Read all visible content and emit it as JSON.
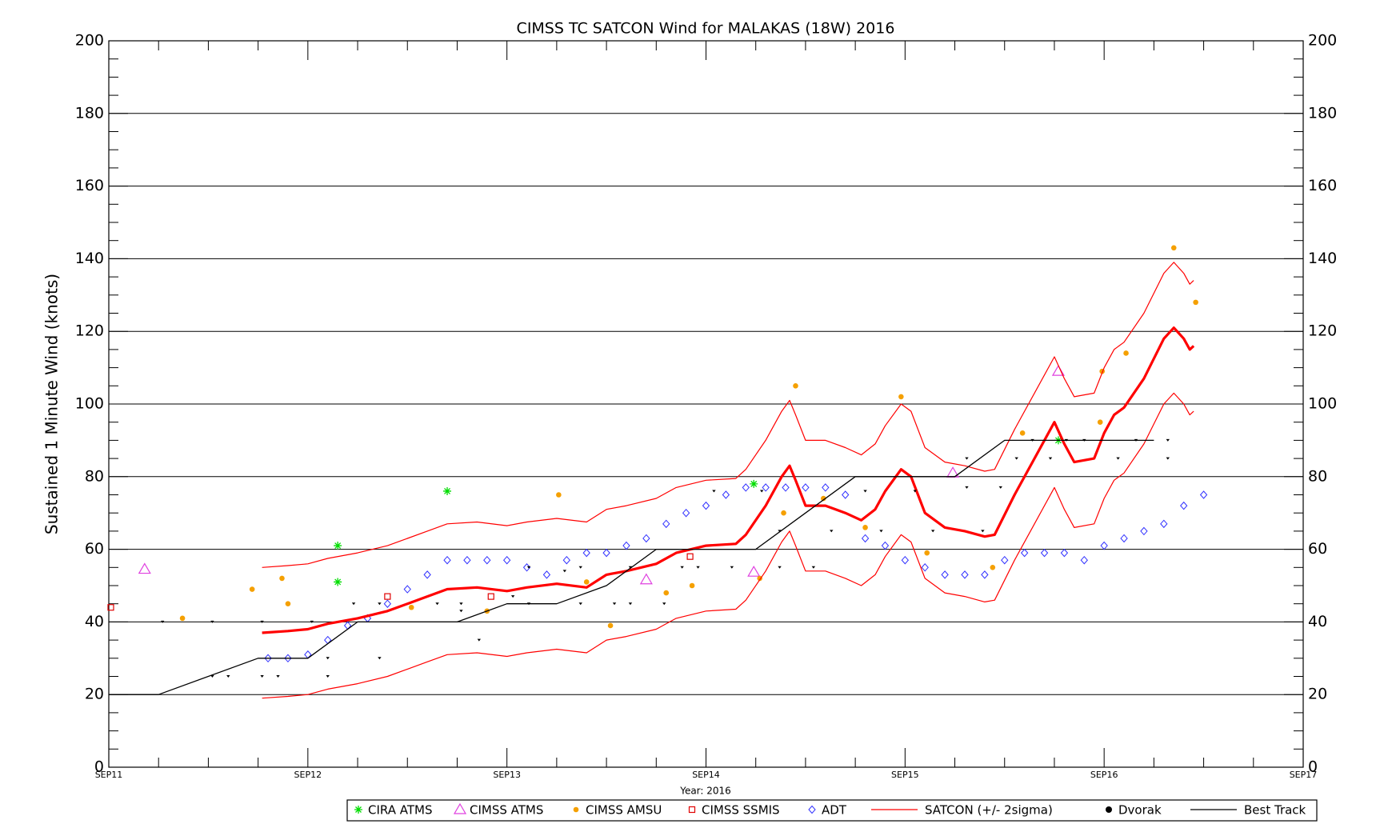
{
  "chart_data": {
    "type": "scatter",
    "title": "CIMSS TC SATCON Wind for MALAKAS (18W) 2016",
    "xlabel": "Year: 2016",
    "ylabel": "Sustained 1 Minute Wind (knots)",
    "xlim": [
      0,
      6
    ],
    "ylim": [
      0,
      200
    ],
    "xticks": [
      {
        "value": 0,
        "label": "SEP11"
      },
      {
        "value": 1,
        "label": "SEP12"
      },
      {
        "value": 2,
        "label": "SEP13"
      },
      {
        "value": 3,
        "label": "SEP14"
      },
      {
        "value": 4,
        "label": "SEP15"
      },
      {
        "value": 5,
        "label": "SEP16"
      },
      {
        "value": 6,
        "label": "SEP17"
      }
    ],
    "yticks": [
      0,
      20,
      40,
      60,
      80,
      100,
      120,
      140,
      160,
      180,
      200
    ],
    "grid": true,
    "series": [
      {
        "name": "CIRA ATMS",
        "color": "#00dd00",
        "marker": "asterisk",
        "x": [
          1.15,
          1.15,
          1.7,
          3.24,
          4.77
        ],
        "values": [
          61,
          51,
          76,
          78,
          90
        ]
      },
      {
        "name": "CIMSS ATMS",
        "color": "#e040e0",
        "marker": "triangle",
        "x": [
          0.18,
          2.7,
          3.24,
          4.24,
          4.77
        ],
        "values": [
          54.5,
          51.6,
          53.7,
          81,
          109
        ]
      },
      {
        "name": "CIMSS AMSU",
        "color": "#f5a000",
        "marker": "dot",
        "x": [
          0.37,
          0.72,
          0.87,
          0.9,
          1.52,
          1.9,
          2.26,
          2.4,
          2.52,
          2.8,
          2.93,
          3.27,
          3.39,
          3.45,
          3.59,
          3.8,
          3.98,
          4.11,
          4.44,
          4.59,
          4.98,
          4.99,
          5.11,
          5.35,
          5.46
        ],
        "values": [
          41,
          49,
          52,
          45,
          44,
          43,
          75,
          51,
          39,
          48,
          50,
          52,
          70,
          105,
          74,
          66,
          102,
          59,
          55,
          92,
          95,
          109,
          114,
          143,
          128
        ]
      },
      {
        "name": "CIMSS SSMIS",
        "color": "#e00000",
        "marker": "square",
        "x": [
          0.01,
          1.4,
          1.92,
          2.92
        ],
        "values": [
          44,
          47,
          47,
          58
        ]
      },
      {
        "name": "ADT",
        "color": "#3030ff",
        "marker": "diamond",
        "x": [
          0.8,
          0.9,
          1.0,
          1.1,
          1.2,
          1.3,
          1.4,
          1.5,
          1.6,
          1.7,
          1.8,
          1.9,
          2.0,
          2.1,
          2.2,
          2.3,
          2.4,
          2.5,
          2.6,
          2.7,
          2.8,
          2.9,
          3.0,
          3.1,
          3.2,
          3.3,
          3.4,
          3.5,
          3.6,
          3.7,
          3.8,
          3.9,
          4.0,
          4.1,
          4.2,
          4.3,
          4.4,
          4.5,
          4.6,
          4.7,
          4.8,
          4.9,
          5.0,
          5.1,
          5.2,
          5.3,
          5.4,
          5.5
        ],
        "values": [
          30,
          30,
          31,
          35,
          39,
          41,
          45,
          49,
          53,
          57,
          57,
          57,
          57,
          55,
          53,
          57,
          59,
          59,
          61,
          63,
          67,
          70,
          72,
          75,
          77,
          77,
          77,
          77,
          77,
          75,
          63,
          61,
          57,
          55,
          53,
          53,
          53,
          57,
          59,
          59,
          59,
          57,
          61,
          63,
          65,
          67,
          72,
          75
        ]
      },
      {
        "name": "SATCON (+/- 2sigma)",
        "color": "#ff0000",
        "marker": "band",
        "x": [
          0.77,
          0.9,
          1.0,
          1.1,
          1.25,
          1.4,
          1.5,
          1.6,
          1.7,
          1.85,
          2.0,
          2.1,
          2.25,
          2.4,
          2.5,
          2.6,
          2.75,
          2.85,
          3.0,
          3.15,
          3.2,
          3.3,
          3.38,
          3.42,
          3.45,
          3.5,
          3.6,
          3.7,
          3.78,
          3.85,
          3.9,
          3.98,
          4.03,
          4.1,
          4.2,
          4.3,
          4.4,
          4.45,
          4.55,
          4.65,
          4.75,
          4.8,
          4.85,
          4.95,
          5.0,
          5.05,
          5.1,
          5.2,
          5.3,
          5.35,
          5.4,
          5.43,
          5.45
        ],
        "values": [
          37,
          37.5,
          38,
          39.5,
          41,
          43,
          45,
          47,
          49,
          49.5,
          48.5,
          49.5,
          50.5,
          49.5,
          53,
          54,
          56,
          59,
          61,
          61.5,
          64,
          72,
          80,
          83,
          79,
          72,
          72,
          70,
          68,
          71,
          76,
          82,
          80,
          70,
          66,
          65,
          63.5,
          64,
          75,
          85,
          95,
          89,
          84,
          85,
          92,
          97,
          99,
          107,
          118,
          121,
          118,
          115,
          116
        ],
        "upper": [
          55,
          55.5,
          56,
          57.5,
          59,
          61,
          63,
          65,
          67,
          67.5,
          66.5,
          67.5,
          68.5,
          67.5,
          71,
          72,
          74,
          77,
          79,
          79.5,
          82,
          90,
          98,
          101,
          97,
          90,
          90,
          88,
          86,
          89,
          94,
          100,
          98,
          88,
          84,
          83,
          81.5,
          82,
          93,
          103,
          113,
          107,
          102,
          103,
          110,
          115,
          117,
          125,
          136,
          139,
          136,
          133,
          134
        ],
        "lower": [
          19,
          19.5,
          20,
          21.5,
          23,
          25,
          27,
          29,
          31,
          31.5,
          30.5,
          31.5,
          32.5,
          31.5,
          35,
          36,
          38,
          41,
          43,
          43.5,
          46,
          54,
          62,
          65,
          61,
          54,
          54,
          52,
          50,
          53,
          58,
          64,
          62,
          52,
          48,
          47,
          45.5,
          46,
          57,
          67,
          77,
          71,
          66,
          67,
          74,
          79,
          81,
          89,
          100,
          103,
          100,
          97,
          98
        ]
      },
      {
        "name": "Dvorak",
        "color": "#000000",
        "marker": "dvorak",
        "x": [
          0.27,
          0.52,
          0.52,
          0.6,
          0.77,
          0.77,
          0.85,
          1.02,
          1.1,
          1.1,
          1.23,
          1.36,
          1.36,
          1.65,
          1.77,
          1.77,
          1.86,
          2.03,
          2.11,
          2.11,
          2.29,
          2.37,
          2.37,
          2.54,
          2.62,
          2.62,
          2.79,
          2.88,
          2.96,
          3.04,
          3.13,
          3.28,
          3.37,
          3.37,
          3.54,
          3.63,
          3.8,
          3.88,
          4.05,
          4.14,
          4.31,
          4.31,
          4.39,
          4.48,
          4.56,
          4.64,
          4.73,
          4.81,
          4.9,
          5.07,
          5.16,
          5.32,
          5.32
        ],
        "values": [
          40,
          40,
          25,
          25,
          25,
          40,
          25,
          40,
          30,
          25,
          45,
          30,
          45,
          45,
          45,
          43,
          35,
          47,
          55,
          45,
          54,
          45,
          55,
          45,
          55,
          45,
          45,
          55,
          55,
          76,
          55,
          76,
          55,
          65,
          55,
          65,
          76,
          65,
          76,
          65,
          85,
          77,
          65,
          77,
          85,
          90,
          85,
          90,
          90,
          85,
          90,
          85,
          90
        ]
      },
      {
        "name": "Best Track",
        "color": "#000000",
        "marker": "line",
        "x": [
          0,
          0.25,
          0.75,
          1.0,
          1.25,
          1.75,
          2.0,
          2.25,
          2.5,
          2.75,
          3.0,
          3.25,
          3.5,
          3.75,
          4.0,
          4.25,
          4.5,
          4.75,
          5.0,
          5.25
        ],
        "values": [
          20,
          20,
          30,
          30,
          40,
          40,
          45,
          45,
          50,
          60,
          60,
          60,
          70,
          80,
          80,
          80,
          90,
          90,
          90,
          90
        ]
      }
    ]
  }
}
